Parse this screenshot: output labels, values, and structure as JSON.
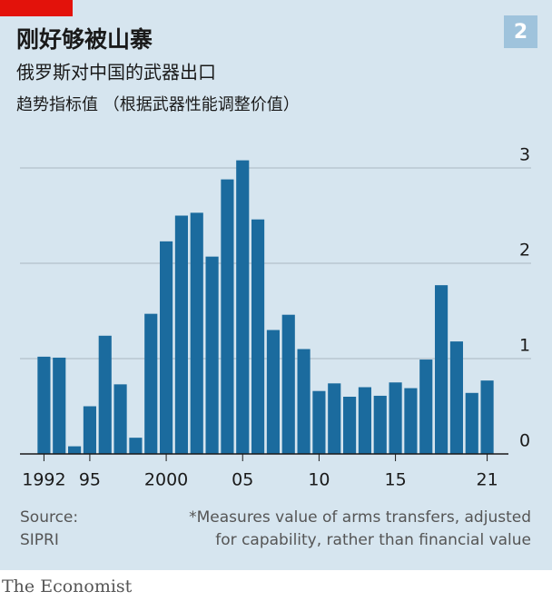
{
  "chart_data": {
    "type": "bar",
    "badge": "2",
    "title": "刚好够被山寨",
    "subtitle": "俄罗斯对中国的武器出口",
    "y_label": "趋势指标值 （根据武器性能调整价值）",
    "categories": [
      "1992",
      null,
      null,
      "95",
      null,
      null,
      null,
      null,
      "2000",
      null,
      null,
      null,
      null,
      "05",
      null,
      null,
      null,
      null,
      "10",
      null,
      null,
      null,
      null,
      "15",
      null,
      null,
      null,
      null,
      null,
      "21"
    ],
    "values": [
      1.02,
      1.01,
      0.08,
      0.5,
      1.24,
      0.73,
      0.17,
      1.47,
      2.23,
      2.5,
      2.53,
      2.07,
      2.88,
      3.08,
      2.46,
      1.3,
      1.46,
      1.1,
      0.66,
      0.74,
      0.6,
      0.7,
      0.61,
      0.75,
      0.69,
      0.99,
      1.77,
      1.18,
      0.64,
      0.77
    ],
    "color": "#1b6b9e",
    "ylim": [
      0,
      3.3
    ],
    "yticks": [
      0,
      1,
      2,
      3
    ],
    "grid": true,
    "source": [
      "Source:",
      "SIPRI"
    ],
    "note": [
      "*Measures value of arms transfers, adjusted",
      "for capability, rather than financial value"
    ],
    "brand": "The Economist"
  }
}
